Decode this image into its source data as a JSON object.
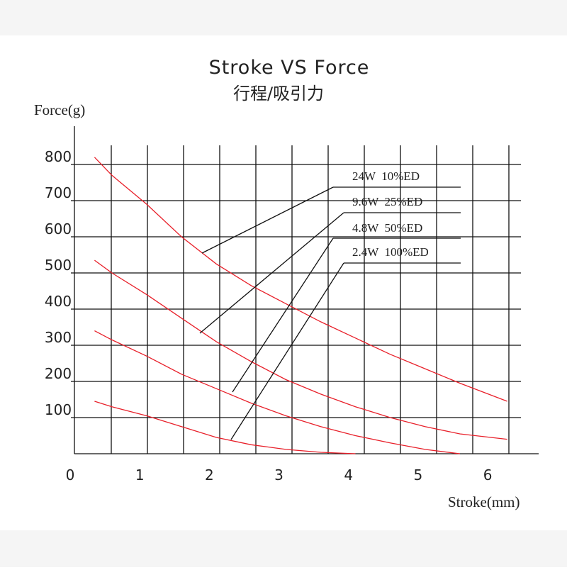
{
  "chart_data": {
    "type": "line",
    "title": "Stroke VS  Force",
    "subtitle": "行程/吸引力",
    "y_label": "Force(g)",
    "x_label": "Stroke(mm)",
    "x": [
      0.35,
      0.6,
      1.1,
      1.6,
      2.1,
      2.6,
      3.1,
      3.6,
      4.1,
      4.6,
      5.1,
      5.6,
      6.28
    ],
    "series": [
      {
        "name": "24W  10%ED",
        "color": "#e8202a",
        "values": [
          820,
          770,
          690,
          600,
          525,
          465,
          415,
          365,
          320,
          275,
          235,
          195,
          145
        ]
      },
      {
        "name": "9.6W  25%ED",
        "color": "#e8202a",
        "values": [
          535,
          500,
          440,
          375,
          310,
          255,
          205,
          165,
          130,
          100,
          75,
          55,
          40
        ]
      },
      {
        "name": "4.8W  50%ED",
        "color": "#e8202a",
        "values": [
          340,
          315,
          270,
          220,
          180,
          140,
          105,
          75,
          50,
          30,
          12,
          0,
          null
        ]
      },
      {
        "name": "2.4W  100%ED",
        "color": "#e8202a",
        "values": [
          145,
          130,
          105,
          75,
          45,
          25,
          12,
          4,
          0,
          null,
          null,
          null,
          null
        ]
      }
    ],
    "xlim": [
      0,
      6.6
    ],
    "xticks": [
      0,
      1,
      2,
      3,
      4,
      5,
      6
    ],
    "ylim": [
      0,
      900
    ],
    "yticks": [
      100,
      200,
      300,
      400,
      500,
      600,
      700,
      800
    ],
    "grid": true
  }
}
